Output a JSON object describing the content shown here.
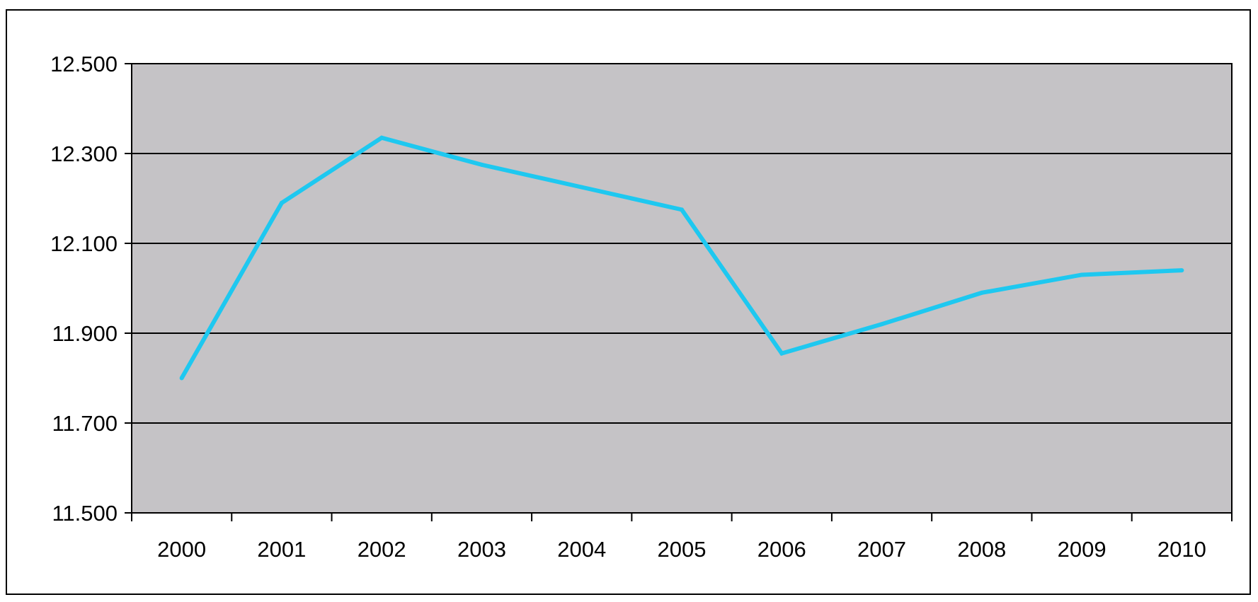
{
  "chart_data": {
    "type": "line",
    "title": "",
    "xlabel": "",
    "ylabel": "",
    "categories": [
      "2000",
      "2001",
      "2002",
      "2003",
      "2004",
      "2005",
      "2006",
      "2007",
      "2008",
      "2009",
      "2010"
    ],
    "series": [
      {
        "values": [
          11.8,
          12.19,
          12.335,
          12.275,
          12.225,
          12.175,
          11.855,
          11.92,
          11.99,
          12.03,
          12.04
        ],
        "color": "#1ec8f0"
      }
    ],
    "ylim": [
      11.5,
      12.5
    ],
    "yticks": [
      11.5,
      11.7,
      11.9,
      12.1,
      12.3,
      12.5
    ],
    "ytick_labels": [
      "11.500",
      "11.700",
      "11.900",
      "12.100",
      "12.300",
      "12.500"
    ],
    "grid": true,
    "legend": "none",
    "colors": {
      "plot_background": "#c5c3c6",
      "gridline": "#000000",
      "line": "#1ec8f0"
    }
  }
}
